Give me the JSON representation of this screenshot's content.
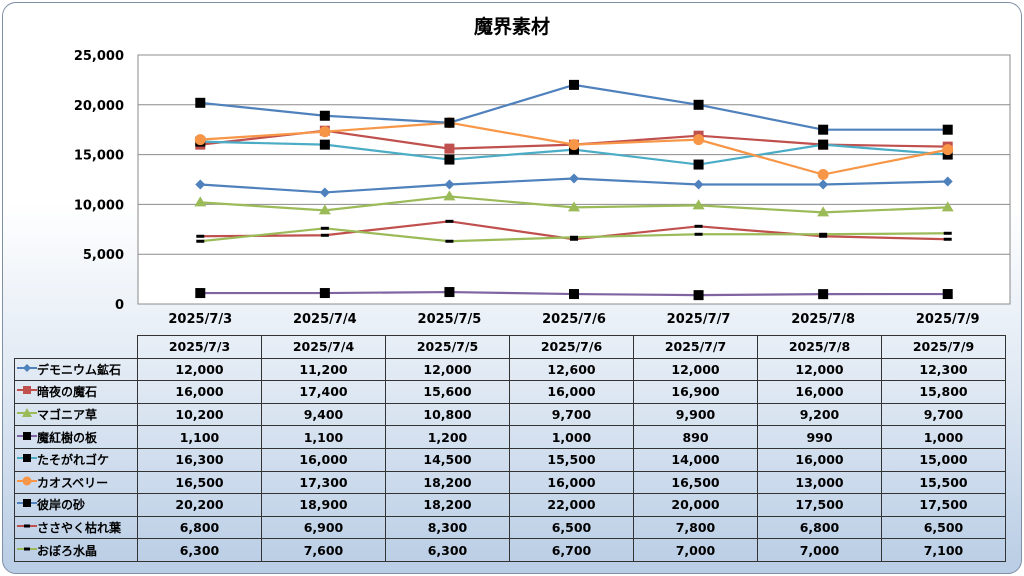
{
  "chart_data": {
    "type": "line",
    "title": "魔界素材",
    "categories": [
      "2025/7/3",
      "2025/7/4",
      "2025/7/5",
      "2025/7/6",
      "2025/7/7",
      "2025/7/8",
      "2025/7/9"
    ],
    "y_ticks": [
      "0",
      "5,000",
      "10,000",
      "15,000",
      "20,000",
      "25,000"
    ],
    "ylim": [
      0,
      25000
    ],
    "grid": true,
    "legend": "data table below chart",
    "series": [
      {
        "name": "デモニウム鉱石",
        "color": "#4f81bd",
        "marker": "diamond",
        "values": [
          12000,
          11200,
          12000,
          12600,
          12000,
          12000,
          12300
        ],
        "labels": [
          "12,000",
          "11,200",
          "12,000",
          "12,600",
          "12,000",
          "12,000",
          "12,300"
        ]
      },
      {
        "name": "暗夜の魔石",
        "color": "#c0504d",
        "marker": "square",
        "values": [
          16000,
          17400,
          15600,
          16000,
          16900,
          16000,
          15800
        ],
        "labels": [
          "16,000",
          "17,400",
          "15,600",
          "16,000",
          "16,900",
          "16,000",
          "15,800"
        ]
      },
      {
        "name": "マゴニア草",
        "color": "#9bbb59",
        "marker": "triangle",
        "values": [
          10200,
          9400,
          10800,
          9700,
          9900,
          9200,
          9700
        ],
        "labels": [
          "10,200",
          "9,400",
          "10,800",
          "9,700",
          "9,900",
          "9,200",
          "9,700"
        ]
      },
      {
        "name": "魔紅樹の板",
        "color": "#8064a2",
        "marker": "blacksquare",
        "values": [
          1100,
          1100,
          1200,
          1000,
          890,
          990,
          1000
        ],
        "labels": [
          "1,100",
          "1,100",
          "1,200",
          "1,000",
          "890",
          "990",
          "1,000"
        ]
      },
      {
        "name": "たそがれゴケ",
        "color": "#4bacc6",
        "marker": "blacksquare",
        "values": [
          16300,
          16000,
          14500,
          15500,
          14000,
          16000,
          15000
        ],
        "labels": [
          "16,300",
          "16,000",
          "14,500",
          "15,500",
          "14,000",
          "16,000",
          "15,000"
        ]
      },
      {
        "name": "カオスベリー",
        "color": "#f79646",
        "marker": "circle",
        "values": [
          16500,
          17300,
          18200,
          16000,
          16500,
          13000,
          15500
        ],
        "labels": [
          "16,500",
          "17,300",
          "18,200",
          "16,000",
          "16,500",
          "13,000",
          "15,500"
        ]
      },
      {
        "name": "彼岸の砂",
        "color": "#4f81bd",
        "marker": "blacksquare",
        "values": [
          20200,
          18900,
          18200,
          22000,
          20000,
          17500,
          17500
        ],
        "labels": [
          "20,200",
          "18,900",
          "18,200",
          "22,000",
          "20,000",
          "17,500",
          "17,500"
        ]
      },
      {
        "name": "ささやく枯れ葉",
        "color": "#c0504d",
        "marker": "dash",
        "values": [
          6800,
          6900,
          8300,
          6500,
          7800,
          6800,
          6500
        ],
        "labels": [
          "6,800",
          "6,900",
          "8,300",
          "6,500",
          "7,800",
          "6,800",
          "6,500"
        ]
      },
      {
        "name": "おぼろ水晶",
        "color": "#9bbb59",
        "marker": "dash",
        "values": [
          6300,
          7600,
          6300,
          6700,
          7000,
          7000,
          7100
        ],
        "labels": [
          "6,300",
          "7,600",
          "6,300",
          "6,700",
          "7,000",
          "7,000",
          "7,100"
        ]
      }
    ]
  }
}
